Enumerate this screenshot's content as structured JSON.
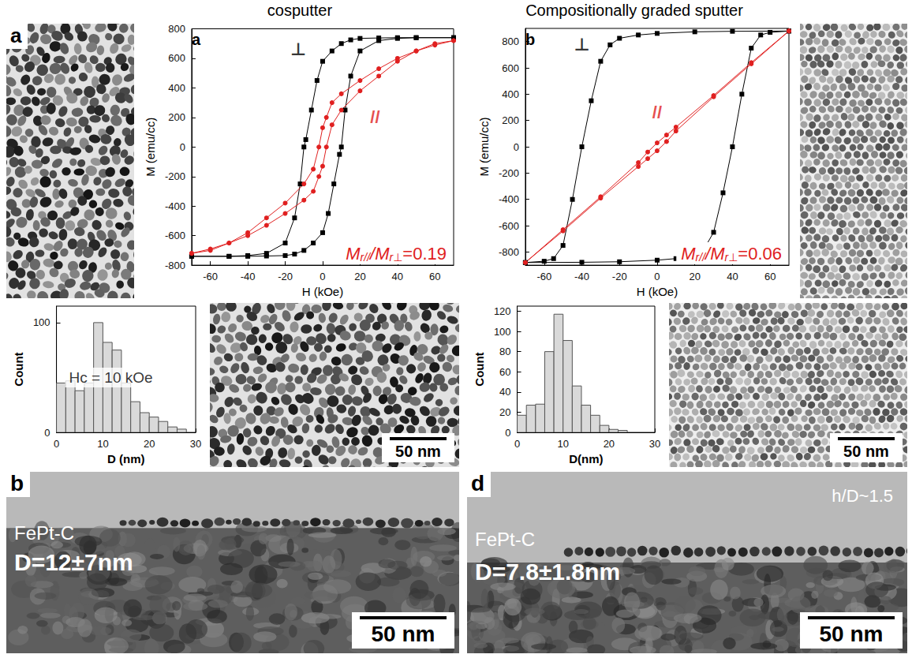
{
  "headers": [
    "cosputter",
    "Compositionally graded sputter"
  ],
  "chart_data": [
    {
      "type": "line",
      "panel": "a",
      "x_label": "H (kOe)",
      "y_label": "M (emu/cc)",
      "xlim": [
        -70,
        70
      ],
      "xticks": [
        -60,
        -40,
        -20,
        0,
        20,
        40,
        60
      ],
      "ylim": [
        -800,
        800
      ],
      "yticks": [
        -800,
        -600,
        -400,
        -200,
        0,
        200,
        400,
        600,
        800
      ],
      "grid": false,
      "series": [
        {
          "color": "#000000",
          "marker": "square",
          "line_style": "solid",
          "x": [
            70,
            50,
            40,
            30,
            20,
            15,
            10,
            5,
            0,
            -3,
            -6,
            -9,
            -10,
            -12,
            -15,
            -20,
            -30,
            -40,
            -50,
            -70,
            -70,
            -50,
            -40,
            -30,
            -20,
            -15,
            -10,
            -5,
            0,
            3,
            6,
            9,
            10,
            12,
            15,
            20,
            30,
            40,
            50,
            70
          ],
          "values": [
            740,
            740,
            740,
            738,
            735,
            725,
            700,
            650,
            580,
            450,
            250,
            50,
            0,
            -250,
            -480,
            -650,
            -720,
            -735,
            -740,
            -740,
            -740,
            -740,
            -740,
            -738,
            -735,
            -725,
            -700,
            -650,
            -580,
            -450,
            -250,
            -50,
            0,
            250,
            480,
            650,
            720,
            735,
            740,
            740
          ]
        },
        {
          "color": "#e02020",
          "marker": "circle",
          "line_style": "solid",
          "x": [
            70,
            60,
            50,
            40,
            30,
            20,
            10,
            5,
            2,
            0,
            -2,
            -5,
            -10,
            -20,
            -30,
            -40,
            -50,
            -60,
            -70,
            -70,
            -60,
            -50,
            -40,
            -30,
            -20,
            -10,
            -5,
            -2,
            0,
            2,
            5,
            10,
            20,
            30,
            40,
            50,
            60,
            70
          ],
          "values": [
            720,
            690,
            650,
            600,
            530,
            450,
            360,
            300,
            200,
            130,
            0,
            -150,
            -250,
            -380,
            -480,
            -580,
            -650,
            -700,
            -720,
            -720,
            -690,
            -650,
            -600,
            -530,
            -450,
            -360,
            -300,
            -200,
            -130,
            0,
            150,
            250,
            380,
            480,
            580,
            650,
            700,
            720
          ]
        }
      ],
      "annotations": [
        {
          "text": "⊥",
          "x": -13,
          "y": 660,
          "color": "#000000"
        },
        {
          "text": "//",
          "x": 28,
          "y": 200,
          "color": "#e02020"
        }
      ],
      "ratio_label": {
        "color": "#e02020",
        "parts": [
          {
            "text": "M",
            "format": "italic"
          },
          {
            "text": "r//",
            "format": "sub"
          },
          {
            "text": "/",
            "format": "italic"
          },
          {
            "text": "M",
            "format": "italic"
          },
          {
            "text": "r⊥",
            "format": "sub"
          },
          {
            "text": "=0.19",
            "format": "plain"
          }
        ]
      }
    },
    {
      "type": "line",
      "panel": "b",
      "x_label": "H (kOe)",
      "y_label": "M (emu/cc)",
      "xlim": [
        -70,
        70
      ],
      "xticks": [
        -60,
        -40,
        -20,
        0,
        20,
        40,
        60
      ],
      "ylim": [
        -900,
        900
      ],
      "yticks": [
        -800,
        -600,
        -400,
        -200,
        0,
        200,
        400,
        600,
        800
      ],
      "grid": false,
      "series": [
        {
          "color": "#000000",
          "marker": "square",
          "line_style": "solid",
          "x": [
            70,
            40,
            20,
            0,
            -10,
            -20,
            -25,
            -30,
            -35,
            -40,
            -45,
            -50,
            -55,
            -60,
            -70,
            -70,
            -40,
            -20,
            0,
            10,
            20,
            25,
            30,
            35,
            40,
            45,
            50,
            55,
            60,
            70
          ],
          "values": [
            880,
            878,
            874,
            862,
            850,
            825,
            775,
            650,
            350,
            0,
            -400,
            -750,
            -850,
            -870,
            -880,
            -880,
            -878,
            -874,
            -862,
            -850,
            -825,
            -775,
            -650,
            -350,
            0,
            400,
            750,
            850,
            870,
            880
          ]
        },
        {
          "color": "#e02020",
          "marker": "circle",
          "line_style": "solid",
          "x": [
            70,
            50,
            30,
            10,
            5,
            0,
            -5,
            -10,
            -30,
            -50,
            -70,
            -70,
            -50,
            -30,
            -10,
            -5,
            0,
            5,
            10,
            30,
            50,
            70
          ],
          "values": [
            880,
            640,
            390,
            150,
            90,
            30,
            -40,
            -120,
            -380,
            -630,
            -880,
            -880,
            -640,
            -390,
            -150,
            -90,
            -30,
            40,
            120,
            380,
            630,
            880
          ]
        }
      ],
      "annotations": [
        {
          "text": "⊥",
          "x": -40,
          "y": 780,
          "color": "#000000"
        },
        {
          "text": "//",
          "x": 0,
          "y": 260,
          "color": "#e02020"
        }
      ],
      "ratio_label": {
        "color": "#e02020",
        "parts": [
          {
            "text": "M",
            "format": "italic"
          },
          {
            "text": "r//",
            "format": "sub"
          },
          {
            "text": "/",
            "format": "italic"
          },
          {
            "text": "M",
            "format": "italic"
          },
          {
            "text": "r⊥",
            "format": "sub"
          },
          {
            "text": "=0.06",
            "format": "plain"
          }
        ]
      }
    },
    {
      "type": "bar",
      "x_label": "D (nm)",
      "y_label": "Count",
      "bins": [
        0,
        2,
        4,
        6,
        8,
        10,
        12,
        14,
        16,
        18,
        20,
        22,
        24,
        26,
        28
      ],
      "values": [
        45,
        47,
        38,
        45,
        100,
        82,
        75,
        45,
        28,
        18,
        14,
        10,
        5,
        3
      ],
      "xlim": [
        0,
        30
      ],
      "xticks": [
        0,
        10,
        20,
        30
      ],
      "ylim": [
        0,
        115
      ],
      "yticks": [
        0,
        100
      ],
      "color": "#d9d9d9",
      "grid": false,
      "annotations": [
        {
          "text": "Hc = 10 kOe",
          "x": 1,
          "y": 50,
          "color": "#000000"
        }
      ]
    },
    {
      "type": "bar",
      "x_label": "D(nm)",
      "y_label": "Count",
      "bins": [
        0,
        2,
        4,
        6,
        8,
        10,
        12,
        14,
        16,
        18,
        20,
        22,
        24
      ],
      "values": [
        17,
        27,
        28,
        80,
        117,
        91,
        46,
        27,
        17,
        7,
        3,
        2
      ],
      "xlim": [
        0,
        30
      ],
      "xticks": [
        0,
        10,
        20,
        30
      ],
      "ylim": [
        0,
        125
      ],
      "yticks": [
        0,
        20,
        40,
        60,
        80,
        100,
        120
      ],
      "color": "#d9d9d9",
      "grid": false,
      "annotations": []
    }
  ],
  "images": {
    "top_left": {
      "letter": "a"
    },
    "middle_left": {
      "scale_bar": "50 nm"
    },
    "middle_right": {
      "scale_bar": "50 nm"
    },
    "bottom_left": {
      "letter": "b",
      "material": "FePt-C",
      "size": "D=12±7nm",
      "scale_bar": "50 nm"
    },
    "bottom_right": {
      "letter": "d",
      "material": "FePt-C",
      "size": "D=7.8±1.8nm",
      "scale_bar": "50 nm",
      "aspect": "h/D~1.5"
    }
  }
}
